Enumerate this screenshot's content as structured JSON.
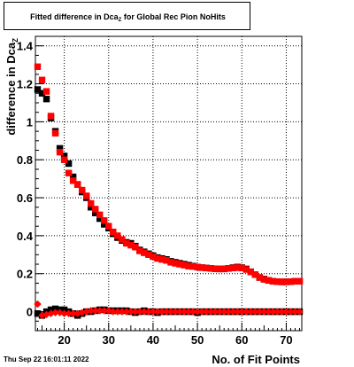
{
  "header": {
    "title_main": "Fitted difference in Dca",
    "title_sub": "Z",
    "title_rest": "for Global Rec Pion NoHits"
  },
  "footer": {
    "datestamp": "Thu Sep 22 16:01:11 2022"
  },
  "chart_data": {
    "type": "scatter",
    "title": "Fitted difference in Dca_Z for Global Rec Pion NoHits",
    "xlabel": "No. of Fit Points",
    "ylabel": "difference in Dca",
    "ylabel_sub": "Z",
    "xlim": [
      13.5,
      73.5
    ],
    "ylim": [
      -0.1,
      1.45
    ],
    "xticks": [
      20,
      30,
      40,
      50,
      60,
      70
    ],
    "yticks": [
      0,
      0.2,
      0.4,
      0.6,
      0.8,
      1,
      1.2,
      1.4
    ],
    "ytick_labels": [
      "0",
      "0.2",
      "0.4",
      "0.6",
      "0.8",
      "1",
      "1.2",
      "1.4"
    ],
    "grid": true,
    "legend": "none",
    "series": [
      {
        "color": "#000000",
        "marker": "square",
        "x": [
          14,
          15,
          16,
          17,
          18,
          19,
          20,
          21,
          22,
          23,
          24,
          25,
          26,
          27,
          28,
          29,
          30,
          31,
          32,
          33,
          34,
          35,
          36,
          37,
          38,
          39,
          40,
          41,
          42,
          43,
          44,
          45,
          46,
          47,
          48,
          49,
          50,
          51,
          52,
          53,
          54,
          55,
          56,
          57,
          58,
          59,
          60,
          61,
          62,
          63,
          64,
          65,
          66,
          67,
          68,
          69,
          70,
          71,
          72,
          73
        ],
        "y": [
          1.17,
          1.15,
          1.12,
          1.02,
          0.95,
          0.86,
          0.82,
          0.78,
          0.71,
          0.67,
          0.63,
          0.6,
          0.55,
          0.52,
          0.49,
          0.46,
          0.44,
          0.41,
          0.39,
          0.375,
          0.365,
          0.36,
          0.345,
          0.325,
          0.315,
          0.305,
          0.295,
          0.285,
          0.28,
          0.275,
          0.265,
          0.26,
          0.255,
          0.25,
          0.245,
          0.24,
          0.235,
          0.232,
          0.23,
          0.228,
          0.226,
          0.225,
          0.225,
          0.228,
          0.232,
          0.235,
          0.232,
          0.225,
          0.21,
          0.195,
          0.18,
          0.172,
          0.165,
          0.16,
          0.158,
          0.157,
          0.157,
          0.158,
          0.16,
          0.16
        ]
      },
      {
        "color": "#ff0000",
        "marker": "square",
        "x": [
          14,
          15,
          16,
          17,
          18,
          19,
          20,
          21,
          22,
          23,
          24,
          25,
          26,
          27,
          28,
          29,
          30,
          31,
          32,
          33,
          34,
          35,
          36,
          37,
          38,
          39,
          40,
          41,
          42,
          43,
          44,
          45,
          46,
          47,
          48,
          49,
          50,
          51,
          52,
          53,
          54,
          55,
          56,
          57,
          58,
          59,
          60,
          61,
          62,
          63,
          64,
          65,
          66,
          67,
          68,
          69,
          70,
          71,
          72,
          73
        ],
        "y": [
          1.29,
          1.22,
          1.16,
          1.03,
          0.94,
          0.84,
          0.8,
          0.73,
          0.69,
          0.67,
          0.64,
          0.61,
          0.57,
          0.54,
          0.51,
          0.48,
          0.45,
          0.42,
          0.4,
          0.38,
          0.36,
          0.35,
          0.34,
          0.32,
          0.31,
          0.3,
          0.29,
          0.28,
          0.275,
          0.27,
          0.26,
          0.255,
          0.25,
          0.245,
          0.24,
          0.238,
          0.235,
          0.232,
          0.23,
          0.228,
          0.226,
          0.225,
          0.226,
          0.228,
          0.23,
          0.232,
          0.23,
          0.222,
          0.21,
          0.195,
          0.18,
          0.17,
          0.165,
          0.16,
          0.158,
          0.157,
          0.157,
          0.158,
          0.16,
          0.16
        ]
      },
      {
        "color": "#000000",
        "marker": "square",
        "x": [
          14,
          15,
          16,
          17,
          18,
          19,
          20,
          21,
          22,
          23,
          24,
          25,
          26,
          27,
          28,
          29,
          30,
          31,
          32,
          33,
          34,
          35,
          36,
          37,
          38,
          39,
          40,
          41,
          42,
          43,
          44,
          45,
          46,
          47,
          48,
          49,
          50,
          51,
          52,
          53,
          54,
          55,
          56,
          57,
          58,
          59,
          60,
          61,
          62,
          63,
          64,
          65,
          66,
          67,
          68,
          69,
          70,
          71,
          72,
          73
        ],
        "y": [
          -0.01,
          -0.02,
          0.0,
          0.01,
          0.015,
          0.01,
          0.01,
          0.0,
          -0.01,
          -0.02,
          -0.01,
          0.0,
          0.0,
          0.005,
          0.01,
          0.01,
          0.005,
          0.005,
          0.005,
          0.005,
          0.005,
          0.0,
          -0.005,
          0.0,
          0.005,
          0.0,
          0.0,
          -0.005,
          0.0,
          0.0,
          0.0,
          0.0,
          0.0,
          0.0,
          0.0,
          0.0,
          -0.005,
          0.0,
          0.0,
          0.0,
          0.0,
          0.0,
          0.0,
          0.0,
          0.0,
          0.0,
          0.0,
          0.0,
          0.0,
          0.0,
          0.0,
          0.0,
          0.0,
          0.0,
          0.0,
          0.0,
          0.0,
          0.0,
          0.0,
          0.0
        ]
      },
      {
        "color": "#ff0000",
        "marker": "diamond",
        "x": [
          14,
          15,
          16,
          17,
          18,
          19,
          20,
          21,
          22,
          23,
          24,
          25,
          26,
          27,
          28,
          29,
          30,
          31,
          32,
          33,
          34,
          35,
          36,
          37,
          38,
          39,
          40,
          41,
          42,
          43,
          44,
          45,
          46,
          47,
          48,
          49,
          50,
          51,
          52,
          53,
          54,
          55,
          56,
          57,
          58,
          59,
          60,
          61,
          62,
          63,
          64,
          65,
          66,
          67,
          68,
          69,
          70,
          71,
          72,
          73
        ],
        "y": [
          0.04,
          -0.02,
          -0.015,
          -0.01,
          -0.005,
          -0.005,
          -0.01,
          -0.01,
          -0.01,
          -0.01,
          -0.005,
          0.0,
          0.005,
          0.005,
          0.005,
          0.005,
          0.005,
          0.0,
          0.0,
          0.0,
          0.0,
          0.0,
          0.0,
          0.0,
          0.0,
          0.0,
          0.0,
          0.0,
          0.0,
          0.0,
          0.0,
          0.0,
          0.0,
          0.0,
          0.0,
          0.0,
          0.0,
          0.0,
          0.0,
          0.0,
          0.0,
          0.0,
          0.0,
          0.0,
          0.0,
          0.0,
          0.0,
          0.0,
          0.0,
          0.0,
          0.0,
          0.0,
          0.0,
          0.0,
          0.0,
          0.0,
          0.0,
          0.0,
          0.0,
          0.0
        ]
      }
    ]
  }
}
